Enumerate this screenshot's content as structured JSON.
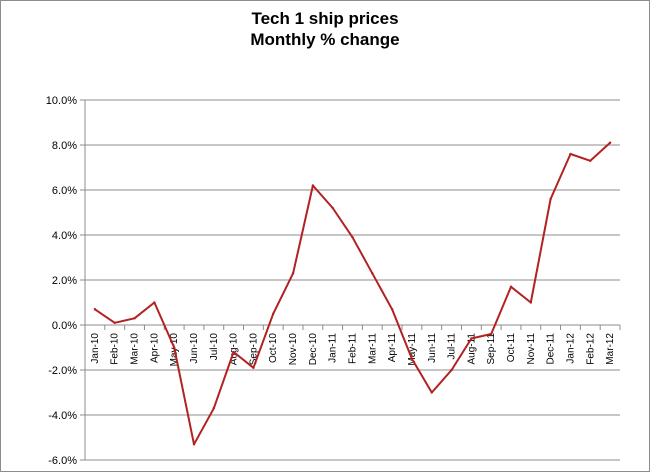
{
  "chart_data": {
    "type": "line",
    "title_line1": "Tech 1 ship prices",
    "title_line2": "Monthly % change",
    "xlabel": "",
    "ylabel": "",
    "ylim": [
      -6.0,
      10.0
    ],
    "ytick_step": 2.0,
    "yticks": [
      "10.0%",
      "8.0%",
      "6.0%",
      "4.0%",
      "2.0%",
      "0.0%",
      "-2.0%",
      "-4.0%",
      "-6.0%"
    ],
    "grid": "horizontal",
    "legend": "none",
    "line_color": "#b22222",
    "categories": [
      "Jan-10",
      "Feb-10",
      "Mar-10",
      "Apr-10",
      "May-10",
      "Jun-10",
      "Jul-10",
      "Aug-10",
      "Sep-10",
      "Oct-10",
      "Nov-10",
      "Dec-10",
      "Jan-11",
      "Feb-11",
      "Mar-11",
      "Apr-11",
      "May-11",
      "Jun-11",
      "Jul-11",
      "Aug-11",
      "Sep-11",
      "Oct-11",
      "Nov-11",
      "Dec-11",
      "Jan-12",
      "Feb-12",
      "Mar-12"
    ],
    "series": [
      {
        "values": [
          0.7,
          0.1,
          0.3,
          1.0,
          -1.0,
          -5.3,
          -3.7,
          -1.2,
          -1.9,
          0.5,
          2.3,
          6.2,
          5.2,
          3.9,
          2.3,
          0.7,
          -1.5,
          -3.0,
          -2.0,
          -0.6,
          -0.4,
          1.7,
          1.0,
          5.6,
          7.6,
          7.3,
          8.1
        ]
      }
    ]
  }
}
